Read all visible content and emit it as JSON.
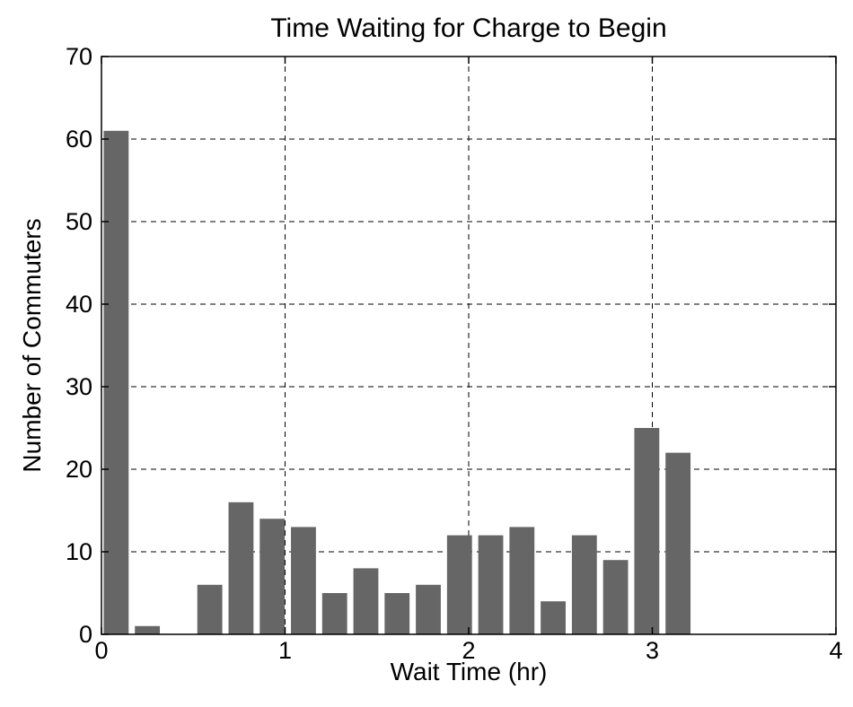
{
  "chart_data": {
    "type": "bar",
    "title": "Time Waiting for Charge to Begin",
    "xlabel": "Wait Time (hr)",
    "ylabel": "Number of Commuters",
    "xlim": [
      0,
      4
    ],
    "ylim": [
      0,
      70
    ],
    "xticks": [
      "0",
      "1",
      "2",
      "3",
      "4"
    ],
    "yticks": [
      "0",
      "10",
      "20",
      "30",
      "40",
      "50",
      "60",
      "70"
    ],
    "grid": true,
    "bar_color": "#666666",
    "bins": [
      0.08,
      0.25,
      0.42,
      0.59,
      0.76,
      0.93,
      1.1,
      1.27,
      1.44,
      1.61,
      1.78,
      1.95,
      2.12,
      2.29,
      2.46,
      2.63,
      2.8,
      2.97,
      3.14
    ],
    "values": [
      61,
      1,
      0,
      6,
      16,
      14,
      13,
      5,
      8,
      5,
      6,
      12,
      12,
      13,
      4,
      12,
      9,
      25,
      22
    ]
  }
}
